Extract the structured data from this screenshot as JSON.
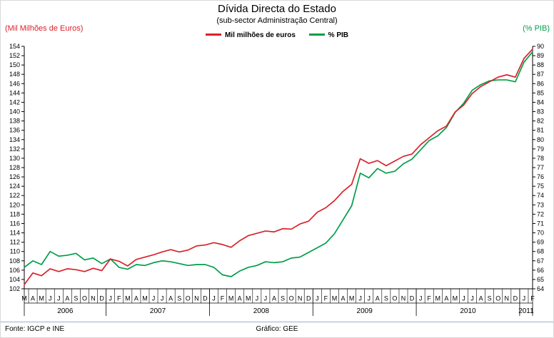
{
  "header": {
    "title": "Dívida Directa do Estado",
    "subtitle": "(sub-sector Administração Central)",
    "left_axis_unit": "(Mil Milhões de Euros)",
    "right_axis_unit": "(% PIB)"
  },
  "legend": [
    {
      "label": "Mil milhões de euros",
      "color": "#D9222A"
    },
    {
      "label": "% PIB",
      "color": "#009E49"
    }
  ],
  "footer": {
    "source": "Fonte: IGCP e INE",
    "credit": "Gráfico: GEE"
  },
  "chart_data": {
    "type": "line",
    "title": "Dívida Directa do Estado",
    "subtitle": "(sub-sector Administração Central)",
    "left_axis": {
      "label": "(Mil Milhões de Euros)",
      "min": 102,
      "max": 154,
      "step": 2
    },
    "right_axis": {
      "label": "(% PIB)",
      "min": 64,
      "max": 90,
      "step": 1
    },
    "grid": false,
    "legend_position": "top-center",
    "x_labels": [
      "M",
      "A",
      "M",
      "J",
      "J",
      "A",
      "S",
      "O",
      "N",
      "D",
      "J",
      "F",
      "M",
      "A",
      "M",
      "J",
      "J",
      "A",
      "S",
      "O",
      "N",
      "D",
      "J",
      "F",
      "M",
      "A",
      "M",
      "J",
      "J",
      "A",
      "S",
      "O",
      "N",
      "D",
      "J",
      "F",
      "M",
      "A",
      "M",
      "J",
      "J",
      "A",
      "S",
      "O",
      "N",
      "D",
      "J",
      "F",
      "M",
      "A",
      "M",
      "J",
      "J",
      "A",
      "S",
      "O",
      "N",
      "D",
      "J",
      "F"
    ],
    "year_groups": [
      {
        "label": "2006",
        "count": 10
      },
      {
        "label": "2007",
        "count": 12
      },
      {
        "label": "2008",
        "count": 12
      },
      {
        "label": "2009",
        "count": 12
      },
      {
        "label": "2010",
        "count": 12
      },
      {
        "label": "2011",
        "count": 2
      }
    ],
    "series": [
      {
        "name": "Mil milhões de euros",
        "axis": "left",
        "color": "#D9222A",
        "values": [
          102.9,
          105.4,
          104.8,
          106.3,
          105.7,
          106.3,
          106.1,
          105.7,
          106.4,
          105.9,
          108.4,
          107.9,
          106.9,
          108.3,
          108.8,
          109.3,
          109.9,
          110.4,
          109.9,
          110.3,
          111.2,
          111.4,
          111.9,
          111.5,
          110.9,
          112.3,
          113.4,
          113.9,
          114.4,
          114.2,
          114.9,
          114.8,
          115.9,
          116.5,
          118.4,
          119.4,
          120.9,
          122.9,
          124.4,
          129.9,
          128.9,
          129.5,
          128.4,
          129.4,
          130.4,
          130.9,
          132.9,
          134.4,
          135.9,
          136.9,
          139.9,
          141.4,
          143.9,
          145.4,
          146.4,
          147.4,
          147.9,
          147.4,
          151.4,
          153.4
        ]
      },
      {
        "name": "% PIB",
        "axis": "right",
        "color": "#009E49",
        "values": [
          66.3,
          67.0,
          66.6,
          68.0,
          67.5,
          67.6,
          67.8,
          67.1,
          67.3,
          66.7,
          67.2,
          66.3,
          66.1,
          66.6,
          66.5,
          66.8,
          67.0,
          66.9,
          66.7,
          66.5,
          66.6,
          66.6,
          66.3,
          65.5,
          65.3,
          65.9,
          66.3,
          66.5,
          66.9,
          66.8,
          66.9,
          67.3,
          67.4,
          67.9,
          68.4,
          68.9,
          69.9,
          71.4,
          72.9,
          76.4,
          75.9,
          76.9,
          76.4,
          76.6,
          77.4,
          77.9,
          78.9,
          79.9,
          80.4,
          81.3,
          82.9,
          83.9,
          85.3,
          85.9,
          86.3,
          86.4,
          86.4,
          86.2,
          88.3,
          89.4
        ]
      }
    ]
  }
}
